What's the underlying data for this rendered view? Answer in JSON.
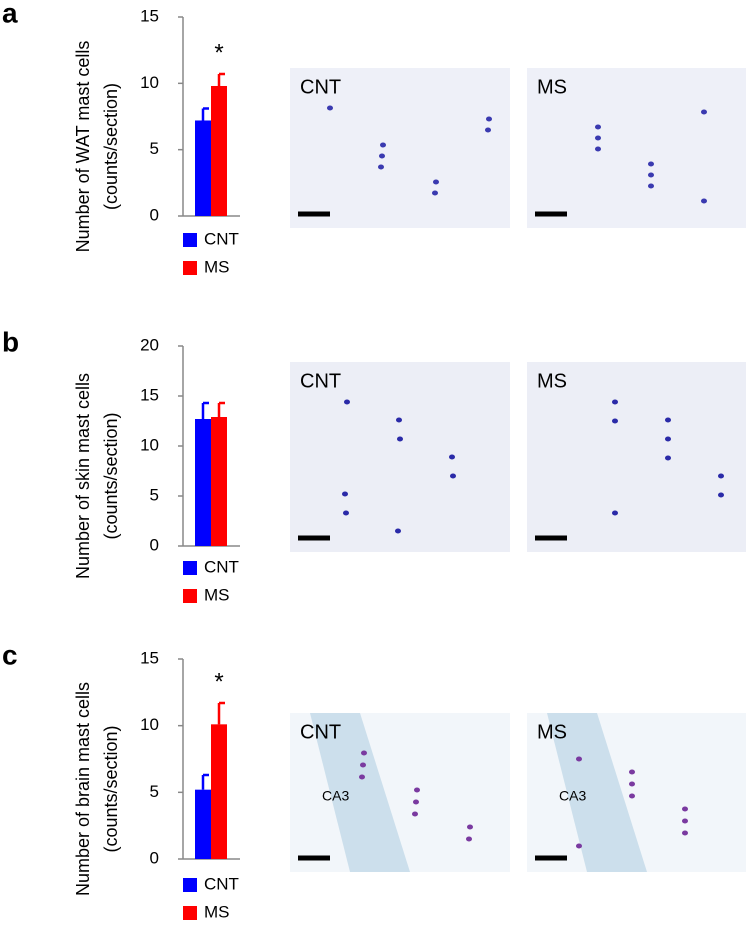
{
  "chart_data": [
    {
      "type": "bar",
      "panel_label": "a",
      "ylabel": [
        "Number of WAT mast cells",
        "(counts/section)"
      ],
      "categories": [
        null
      ],
      "series": [
        {
          "name": "CNT",
          "color": "#0000ff",
          "values": [
            7.2
          ],
          "errors": [
            0.9
          ]
        },
        {
          "name": "MS",
          "color": "#ff0000",
          "values": [
            9.8
          ],
          "errors": [
            0.9
          ]
        }
      ],
      "ylim": [
        0,
        15
      ],
      "yticks": [
        0,
        5,
        10,
        15
      ],
      "annotation": "*"
    },
    {
      "type": "bar",
      "panel_label": "b",
      "ylabel": [
        "Number of skin mast cells",
        "(counts/section)"
      ],
      "categories": [
        null
      ],
      "series": [
        {
          "name": "CNT",
          "color": "#0000ff",
          "values": [
            12.7
          ],
          "errors": [
            1.6
          ]
        },
        {
          "name": "MS",
          "color": "#ff0000",
          "values": [
            12.9
          ],
          "errors": [
            1.4
          ]
        }
      ],
      "ylim": [
        0,
        20
      ],
      "yticks": [
        0,
        5,
        10,
        15,
        20
      ]
    },
    {
      "type": "bar",
      "panel_label": "c",
      "ylabel": [
        "Number of brain mast cells",
        "(counts/section)"
      ],
      "categories": [
        null
      ],
      "series": [
        {
          "name": "CNT",
          "color": "#0000ff",
          "values": [
            5.2
          ],
          "errors": [
            1.1
          ]
        },
        {
          "name": "MS",
          "color": "#ff0000",
          "values": [
            10.1
          ],
          "errors": [
            1.6
          ]
        }
      ],
      "ylim": [
        0,
        15
      ],
      "yticks": [
        0,
        5,
        10,
        15
      ],
      "annotation": "*"
    }
  ],
  "micrographs": [
    [
      {
        "label": "CNT"
      },
      {
        "label": "MS"
      }
    ],
    [
      {
        "label": "CNT"
      },
      {
        "label": "MS"
      }
    ],
    [
      {
        "label": "CNT",
        "region": "CA3"
      },
      {
        "label": "MS",
        "region": "CA3"
      }
    ]
  ]
}
